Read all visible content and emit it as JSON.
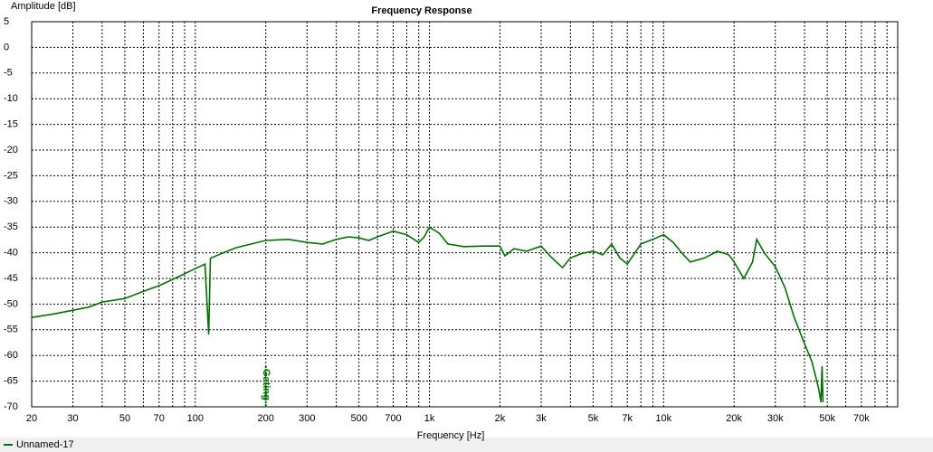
{
  "chart_data": {
    "type": "line",
    "title": "Frequency Response",
    "x_label": "Frequency [Hz]",
    "y_label": "Amplitude [dB]",
    "log_x": true,
    "grid": true,
    "xlim": [
      20,
      100000
    ],
    "ylim": [
      -70,
      5
    ],
    "yticks": [
      5,
      0,
      -5,
      -10,
      -15,
      -20,
      -25,
      -30,
      -35,
      -40,
      -45,
      -50,
      -55,
      -60,
      -65,
      -70
    ],
    "xticks": [
      20,
      30,
      50,
      70,
      100,
      200,
      300,
      500,
      700,
      {
        "value": 1000,
        "label": "1k"
      },
      {
        "value": 2000,
        "label": "2k"
      },
      {
        "value": 3000,
        "label": "3k"
      },
      {
        "value": 5000,
        "label": "5k"
      },
      {
        "value": 7000,
        "label": "7k"
      },
      {
        "value": 10000,
        "label": "10k"
      },
      {
        "value": 20000,
        "label": "20k"
      },
      {
        "value": 30000,
        "label": "30k"
      },
      {
        "value": 50000,
        "label": "50k"
      },
      {
        "value": 70000,
        "label": "70k"
      }
    ],
    "x_minor_ticks": [
      40,
      60,
      80,
      90,
      400,
      600,
      800,
      900,
      4000,
      6000,
      8000,
      9000,
      40000,
      60000,
      80000,
      90000,
      100000
    ],
    "annotation": {
      "text": "Gating",
      "x": 200,
      "color": "#007000"
    },
    "legend": "bottom-left",
    "x": [
      20,
      25,
      30,
      35,
      40,
      50,
      60,
      70,
      80,
      100,
      110,
      114,
      116,
      130,
      150,
      200,
      250,
      300,
      350,
      400,
      450,
      500,
      550,
      600,
      700,
      800,
      900,
      950,
      1000,
      1100,
      1200,
      1400,
      1700,
      2000,
      2100,
      2300,
      2600,
      3000,
      3300,
      3700,
      4000,
      4500,
      5000,
      5500,
      6000,
      6500,
      7000,
      8000,
      9000,
      10000,
      11000,
      12000,
      13000,
      15000,
      17000,
      19000,
      20000,
      22000,
      24000,
      25000,
      27000,
      30000,
      33000,
      36000,
      40000,
      43000,
      46000,
      47000,
      47500,
      48000
    ],
    "series": [
      {
        "name": "Unnamed-17",
        "color": "#007000",
        "values": [
          -52.6,
          -51.9,
          -51.2,
          -50.6,
          -49.6,
          -48.9,
          -47.5,
          -46.4,
          -45.2,
          -43.1,
          -42.2,
          -55.9,
          -41.1,
          -40.1,
          -39,
          -37.6,
          -37.4,
          -38,
          -38.3,
          -37.4,
          -36.9,
          -37.1,
          -37.6,
          -36.9,
          -35.8,
          -36.5,
          -38,
          -36.9,
          -35,
          -36.2,
          -38.3,
          -38.8,
          -38.7,
          -38.7,
          -40.6,
          -39.2,
          -39.7,
          -38.7,
          -40.8,
          -42.9,
          -41,
          -40.1,
          -39.7,
          -40.4,
          -38.3,
          -41,
          -42.2,
          -38.3,
          -37.4,
          -36.5,
          -38,
          -40.1,
          -41.8,
          -41,
          -39.7,
          -40.4,
          -41.8,
          -45,
          -41.8,
          -37.4,
          -40.1,
          -42.7,
          -46.8,
          -52.4,
          -57.7,
          -61.2,
          -66.5,
          -69.1,
          -62.1,
          -69.1
        ]
      }
    ]
  }
}
